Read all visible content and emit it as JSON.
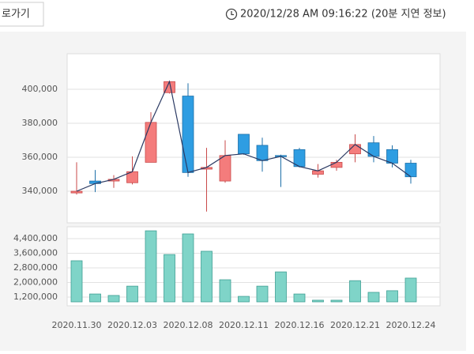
{
  "header": {
    "button": "로가기",
    "timestamp": "2020/12/28 AM 09:16:22 (20분 지연 정보)"
  },
  "chart_data": [
    {
      "type": "candlestick",
      "categories": [
        "2020.11.30",
        null,
        null,
        "2020.12.03",
        null,
        null,
        "2020.12.08",
        null,
        null,
        "2020.12.11",
        null,
        null,
        "2020.12.16",
        null,
        null,
        "2020.12.21",
        null,
        null,
        "2020.12.24"
      ],
      "open": [
        339000,
        346000,
        346000,
        345000,
        357000,
        398000,
        396000,
        353000,
        346000,
        373500,
        367000,
        361000,
        364500,
        350000,
        354000,
        362000,
        368500,
        364500,
        356500
      ],
      "high": [
        357000,
        352500,
        349500,
        360500,
        386500,
        404500,
        403500,
        365500,
        370000,
        373500,
        371500,
        361500,
        365500,
        356000,
        358500,
        373500,
        372500,
        367000,
        358500
      ],
      "low": [
        338000,
        339500,
        342000,
        344000,
        357000,
        397500,
        348500,
        328000,
        345000,
        361500,
        351500,
        342500,
        354000,
        348000,
        352000,
        357000,
        357000,
        354000,
        344500
      ],
      "close": [
        340000,
        344500,
        347000,
        351500,
        380500,
        404500,
        351000,
        354000,
        361000,
        362000,
        358000,
        360500,
        354500,
        352000,
        357000,
        367500,
        360500,
        356500,
        348500
      ],
      "up_color": "#f47c7c",
      "down_color": "#2e9de2",
      "line_color": "#2b3a63",
      "ylim": [
        321400,
        420900
      ],
      "yticks": [
        {
          "value": 340000,
          "label": "340,000"
        },
        {
          "value": 360000,
          "label": "360,000"
        },
        {
          "value": 380000,
          "label": "380,000"
        },
        {
          "value": 400000,
          "label": "400,000"
        }
      ],
      "grid": true
    },
    {
      "type": "bar",
      "categories": [
        "2020.11.30",
        null,
        null,
        "2020.12.03",
        null,
        null,
        "2020.12.08",
        null,
        null,
        "2020.12.11",
        null,
        null,
        "2020.12.16",
        null,
        null,
        "2020.12.21",
        null,
        null,
        "2020.12.24"
      ],
      "values": [
        3190000,
        1370000,
        1290000,
        1800000,
        4830000,
        3530000,
        4660000,
        3710000,
        2150000,
        1240000,
        1800000,
        2580000,
        1370000,
        1030000,
        1030000,
        2100000,
        1460000,
        1550000,
        2240000
      ],
      "color": "#7fd4c8",
      "ylim": [
        940000,
        5050000
      ],
      "yticks": [
        {
          "value": 1200000,
          "label": "1,200,000"
        },
        {
          "value": 2000000,
          "label": "2,000,000"
        },
        {
          "value": 2800000,
          "label": "2,800,000"
        },
        {
          "value": 3600000,
          "label": "3,600,000"
        },
        {
          "value": 4400000,
          "label": "4,400,000"
        }
      ],
      "grid": true
    }
  ]
}
